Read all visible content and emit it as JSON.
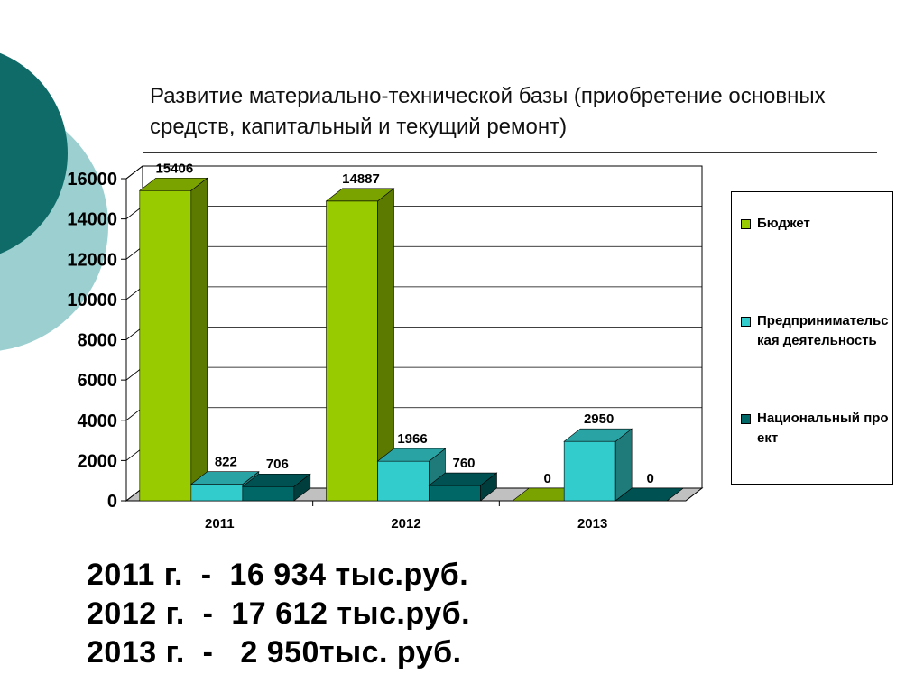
{
  "slide": {
    "title": "Развитие материально-технической базы (приобретение основных средств, капитальный и текущий ремонт)"
  },
  "colors": {
    "deco_dark": "#0e6b68",
    "deco_light": "#9ccfd0",
    "budget": "#99cc00",
    "business": "#33cccc",
    "national": "#006666",
    "grid": "#000000"
  },
  "chart_data": {
    "type": "bar",
    "style": "3d-clustered-column",
    "categories": [
      "2011",
      "2012",
      "2013"
    ],
    "series": [
      {
        "name": "Бюджет",
        "values": [
          15406,
          14887,
          0
        ],
        "labels": [
          "15406",
          "14887",
          "0"
        ],
        "color": "#99cc00"
      },
      {
        "name": "Предпринимательская деятельность",
        "values": [
          822,
          1966,
          2950
        ],
        "labels": [
          "822",
          "1966",
          "2950"
        ],
        "color": "#33cccc"
      },
      {
        "name": "Национальный проект",
        "values": [
          706,
          760,
          0
        ],
        "labels": [
          "706",
          "760",
          "0"
        ],
        "color": "#006666"
      }
    ],
    "ylim": [
      0,
      16000
    ],
    "yticks": [
      "0",
      "2000",
      "4000",
      "6000",
      "8000",
      "10000",
      "12000",
      "14000",
      "16000"
    ],
    "grid": true,
    "legend_position": "right"
  },
  "legend": {
    "items": [
      {
        "label": "Бюджет"
      },
      {
        "label": "Предпринимательская деятельность"
      },
      {
        "label": "Национальный проект"
      }
    ]
  },
  "totals": [
    "2011 г.  -  16 934 тыс.руб.",
    "2012 г.  -  17 612 тыс.руб.",
    "2013 г.  -   2 950тыс. руб."
  ]
}
